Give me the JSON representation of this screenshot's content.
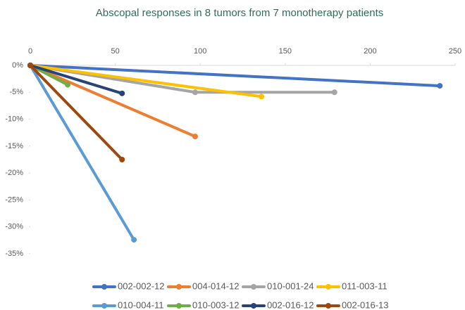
{
  "chart_data": {
    "type": "line",
    "title": "Abscopal responses in 8 tumors from 7 monotherapy patients",
    "xlim": [
      0,
      250
    ],
    "xticks": [
      0,
      50,
      100,
      150,
      200,
      250
    ],
    "ylim": [
      -35,
      0
    ],
    "yticks": [
      {
        "value": 0,
        "label": "0%"
      },
      {
        "value": -5,
        "label": "-5%"
      },
      {
        "value": -10,
        "label": "-10%"
      },
      {
        "value": -15,
        "label": "-15%"
      },
      {
        "value": -20,
        "label": "-20%"
      },
      {
        "value": -25,
        "label": "-25%"
      },
      {
        "value": -30,
        "label": "-30%"
      },
      {
        "value": -35,
        "label": "-35%"
      }
    ],
    "legend": "bottom",
    "series": [
      {
        "name": "002-002-12",
        "color": "#4472c4",
        "x": [
          0,
          241
        ],
        "values": [
          0,
          -3.8
        ]
      },
      {
        "name": "004-014-12",
        "color": "#ed7d31",
        "x": [
          0,
          97
        ],
        "values": [
          0,
          -13.2
        ]
      },
      {
        "name": "010-001-24",
        "color": "#a5a5a5",
        "x": [
          0,
          97,
          179
        ],
        "values": [
          0,
          -5,
          -5
        ]
      },
      {
        "name": "011-003-11",
        "color": "#ffc000",
        "x": [
          0,
          136
        ],
        "values": [
          0,
          -5.8
        ]
      },
      {
        "name": "010-004-11",
        "color": "#5b9bd5",
        "x": [
          0,
          61
        ],
        "values": [
          0,
          -32.4
        ]
      },
      {
        "name": "010-003-12",
        "color": "#70ad47",
        "x": [
          0,
          22
        ],
        "values": [
          0,
          -3.6
        ]
      },
      {
        "name": "002-016-12",
        "color": "#264478",
        "x": [
          0,
          54
        ],
        "values": [
          0,
          -5.2
        ]
      },
      {
        "name": "002-016-13",
        "color": "#9e480e",
        "x": [
          0,
          54
        ],
        "values": [
          0,
          -17.5
        ]
      }
    ]
  }
}
